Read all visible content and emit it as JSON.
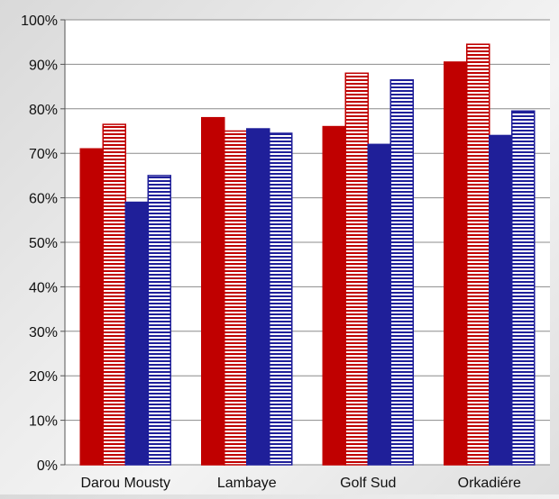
{
  "chart_data": {
    "type": "bar",
    "categories": [
      "Darou Mousty",
      "Lambaye",
      "Golf Sud",
      "Orkadiére"
    ],
    "series": [
      {
        "values": [
          71,
          78,
          76,
          90.5
        ],
        "color": "#c00000",
        "pattern": "solid"
      },
      {
        "values": [
          76.5,
          75,
          88,
          94.5
        ],
        "color": "#c00000",
        "pattern": "horizontal-stripes"
      },
      {
        "values": [
          59,
          75.5,
          72,
          74
        ],
        "color": "#1f1f99",
        "pattern": "solid"
      },
      {
        "values": [
          65,
          74.5,
          86.5,
          79.5
        ],
        "color": "#1f1f99",
        "pattern": "horizontal-stripes"
      }
    ],
    "y_ticks": [
      "0%",
      "10%",
      "20%",
      "30%",
      "40%",
      "50%",
      "60%",
      "70%",
      "80%",
      "90%",
      "100%"
    ],
    "ylim": [
      0,
      100
    ],
    "gridlines": true,
    "legend": "none",
    "title": "",
    "xlabel": "",
    "ylabel": ""
  }
}
